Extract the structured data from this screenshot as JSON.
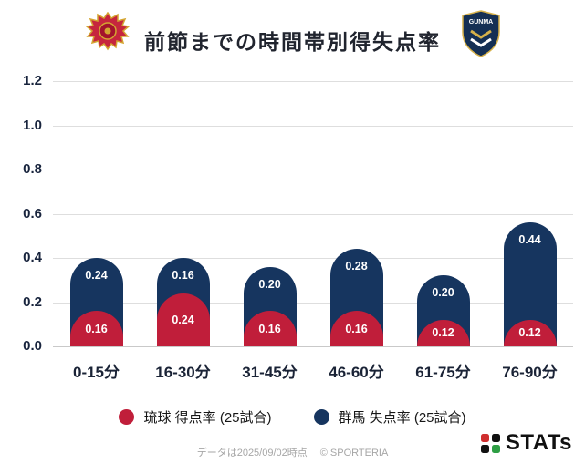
{
  "header": {
    "title": "前節までの時間帯別得失点率",
    "left_logo_icon": "fc-ryukyu-crest",
    "right_logo_icon": "thespakusatsu-gunma-crest",
    "right_logo_text": "GUNMA"
  },
  "chart_data": {
    "type": "bar",
    "stacked": true,
    "title": "前節までの時間帯別得失点率",
    "categories": [
      "0-15分",
      "16-30分",
      "31-45分",
      "46-60分",
      "61-75分",
      "76-90分"
    ],
    "series": [
      {
        "name": "琉球 得点率 (25試合)",
        "role": "bottom-segment",
        "color": "#c01e3a",
        "values": [
          0.16,
          0.24,
          0.16,
          0.16,
          0.12,
          0.12
        ]
      },
      {
        "name": "群馬 失点率 (25試合)",
        "role": "top-segment",
        "color": "#16355f",
        "values": [
          0.24,
          0.16,
          0.2,
          0.28,
          0.2,
          0.44
        ]
      }
    ],
    "ylim": [
      0,
      1.2
    ],
    "yticks": [
      0,
      0.2,
      0.4,
      0.6,
      0.8,
      1.0,
      1.2
    ],
    "grid": true,
    "legend_position": "bottom",
    "value_label_format": "0.00"
  },
  "footer": {
    "note": "データは2025/09/02時点",
    "copyright": "© SPORTERIA",
    "brand_text": "STATs"
  }
}
